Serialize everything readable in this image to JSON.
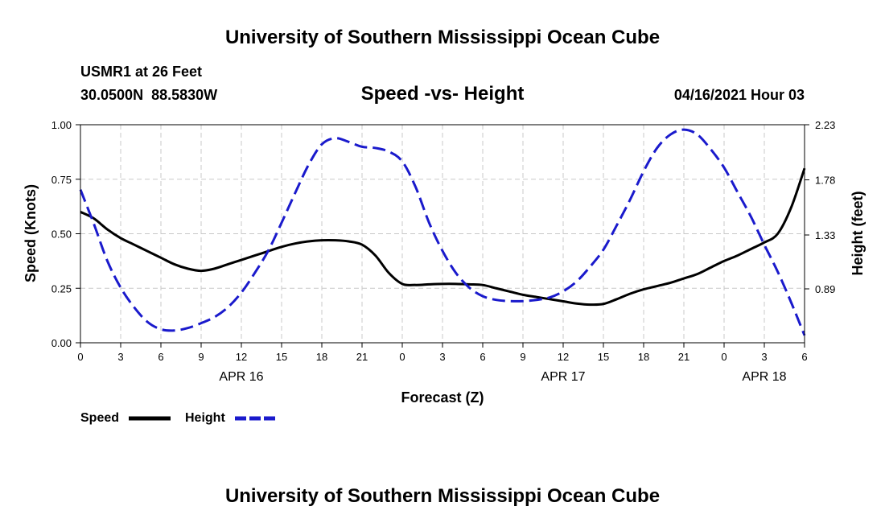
{
  "page": {
    "top_title": "University of Southern Mississippi Ocean Cube",
    "bottom_title": "University of Southern Mississippi Ocean Cube",
    "station_line": "USMR1 at 26 Feet",
    "coords_line": "30.0500N  88.5830W",
    "datetime_line": "04/16/2021 Hour 03"
  },
  "chart_data": {
    "type": "line",
    "title": "Speed -vs- Height",
    "xlabel": "Forecast (Z)",
    "ylabel_left": "Speed (Knots)",
    "ylabel_right": "Height (feet)",
    "x_range_hours": [
      0,
      54
    ],
    "x_ticks": [
      {
        "hour": 0,
        "label": "0"
      },
      {
        "hour": 3,
        "label": "3"
      },
      {
        "hour": 6,
        "label": "6"
      },
      {
        "hour": 9,
        "label": "9"
      },
      {
        "hour": 12,
        "label": "12"
      },
      {
        "hour": 15,
        "label": "15"
      },
      {
        "hour": 18,
        "label": "18"
      },
      {
        "hour": 21,
        "label": "21"
      },
      {
        "hour": 24,
        "label": "0"
      },
      {
        "hour": 27,
        "label": "3"
      },
      {
        "hour": 30,
        "label": "6"
      },
      {
        "hour": 33,
        "label": "9"
      },
      {
        "hour": 36,
        "label": "12"
      },
      {
        "hour": 39,
        "label": "15"
      },
      {
        "hour": 42,
        "label": "18"
      },
      {
        "hour": 45,
        "label": "21"
      },
      {
        "hour": 48,
        "label": "0"
      },
      {
        "hour": 51,
        "label": "3"
      },
      {
        "hour": 54,
        "label": "6"
      }
    ],
    "date_labels": [
      {
        "hour": 12,
        "label": "APR 16"
      },
      {
        "hour": 36,
        "label": "APR 17"
      },
      {
        "hour": 51,
        "label": "APR 18"
      }
    ],
    "y_left": {
      "range": [
        0,
        1.0
      ],
      "ticks": [
        "0.00",
        "0.25",
        "0.50",
        "0.75",
        "1.00"
      ]
    },
    "y_right": {
      "range": [
        0.45,
        2.23
      ],
      "ticks": [
        "0.89",
        "1.33",
        "1.78",
        "2.23"
      ]
    },
    "grid": true,
    "legend": {
      "position": "bottom-left",
      "speed_label": "Speed",
      "height_label": "Height"
    },
    "series": [
      {
        "name": "Speed",
        "axis": "left",
        "color": "#000000",
        "style": "solid",
        "points": [
          [
            0,
            0.6
          ],
          [
            1,
            0.57
          ],
          [
            2,
            0.52
          ],
          [
            3,
            0.48
          ],
          [
            4,
            0.45
          ],
          [
            5,
            0.42
          ],
          [
            6,
            0.39
          ],
          [
            7,
            0.36
          ],
          [
            8,
            0.34
          ],
          [
            9,
            0.33
          ],
          [
            10,
            0.34
          ],
          [
            11,
            0.36
          ],
          [
            12,
            0.38
          ],
          [
            13,
            0.4
          ],
          [
            14,
            0.42
          ],
          [
            15,
            0.44
          ],
          [
            16,
            0.455
          ],
          [
            17,
            0.465
          ],
          [
            18,
            0.47
          ],
          [
            19,
            0.47
          ],
          [
            20,
            0.465
          ],
          [
            21,
            0.45
          ],
          [
            22,
            0.4
          ],
          [
            23,
            0.32
          ],
          [
            24,
            0.27
          ],
          [
            25,
            0.265
          ],
          [
            26,
            0.268
          ],
          [
            27,
            0.27
          ],
          [
            28,
            0.27
          ],
          [
            29,
            0.268
          ],
          [
            30,
            0.265
          ],
          [
            31,
            0.25
          ],
          [
            32,
            0.235
          ],
          [
            33,
            0.22
          ],
          [
            34,
            0.21
          ],
          [
            35,
            0.2
          ],
          [
            36,
            0.19
          ],
          [
            37,
            0.18
          ],
          [
            38,
            0.175
          ],
          [
            39,
            0.178
          ],
          [
            40,
            0.2
          ],
          [
            41,
            0.225
          ],
          [
            42,
            0.245
          ],
          [
            43,
            0.26
          ],
          [
            44,
            0.275
          ],
          [
            45,
            0.295
          ],
          [
            46,
            0.315
          ],
          [
            47,
            0.345
          ],
          [
            48,
            0.375
          ],
          [
            49,
            0.4
          ],
          [
            50,
            0.43
          ],
          [
            51,
            0.46
          ],
          [
            52,
            0.5
          ],
          [
            53,
            0.62
          ],
          [
            54,
            0.8
          ]
        ]
      },
      {
        "name": "Height",
        "axis": "right",
        "color": "#1a1acc",
        "style": "dashed",
        "points": [
          [
            0,
            1.7
          ],
          [
            1,
            1.42
          ],
          [
            2,
            1.12
          ],
          [
            3,
            0.9
          ],
          [
            4,
            0.74
          ],
          [
            5,
            0.62
          ],
          [
            6,
            0.56
          ],
          [
            7,
            0.55
          ],
          [
            8,
            0.57
          ],
          [
            9,
            0.61
          ],
          [
            10,
            0.66
          ],
          [
            11,
            0.74
          ],
          [
            12,
            0.86
          ],
          [
            13,
            1.02
          ],
          [
            14,
            1.2
          ],
          [
            15,
            1.43
          ],
          [
            16,
            1.67
          ],
          [
            17,
            1.9
          ],
          [
            18,
            2.07
          ],
          [
            19,
            2.12
          ],
          [
            20,
            2.09
          ],
          [
            21,
            2.05
          ],
          [
            22,
            2.04
          ],
          [
            23,
            2.01
          ],
          [
            24,
            1.93
          ],
          [
            25,
            1.72
          ],
          [
            26,
            1.43
          ],
          [
            27,
            1.2
          ],
          [
            28,
            1.02
          ],
          [
            29,
            0.9
          ],
          [
            30,
            0.83
          ],
          [
            31,
            0.8
          ],
          [
            32,
            0.79
          ],
          [
            33,
            0.79
          ],
          [
            34,
            0.8
          ],
          [
            35,
            0.82
          ],
          [
            36,
            0.87
          ],
          [
            37,
            0.95
          ],
          [
            38,
            1.07
          ],
          [
            39,
            1.21
          ],
          [
            40,
            1.41
          ],
          [
            41,
            1.62
          ],
          [
            42,
            1.85
          ],
          [
            43,
            2.04
          ],
          [
            44,
            2.15
          ],
          [
            45,
            2.19
          ],
          [
            46,
            2.15
          ],
          [
            47,
            2.03
          ],
          [
            48,
            1.88
          ],
          [
            49,
            1.68
          ],
          [
            50,
            1.48
          ],
          [
            51,
            1.25
          ],
          [
            52,
            1.03
          ],
          [
            53,
            0.78
          ],
          [
            54,
            0.51
          ]
        ]
      }
    ]
  }
}
